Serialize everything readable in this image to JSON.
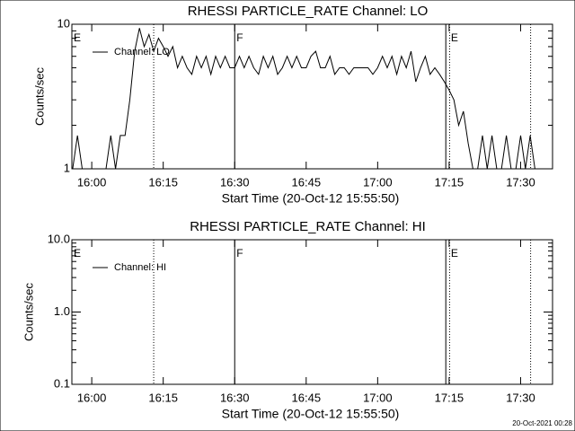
{
  "chart_data": [
    {
      "type": "line",
      "title": "RHESSI PARTICLE_RATE Channel: LO",
      "xlabel": "Start Time (20-Oct-12 15:55:50)",
      "ylabel": "Counts/sec",
      "log_y": true,
      "xlim": [
        -4.17,
        96.7
      ],
      "ylim": [
        1,
        10
      ],
      "xticks": [
        {
          "value": 0,
          "label": "16:00"
        },
        {
          "value": 15,
          "label": "16:15"
        },
        {
          "value": 30,
          "label": "16:30"
        },
        {
          "value": 45,
          "label": "16:45"
        },
        {
          "value": 60,
          "label": "17:00"
        },
        {
          "value": 75,
          "label": "17:15"
        },
        {
          "value": 90,
          "label": "17:30"
        }
      ],
      "yticks": [
        1,
        10
      ],
      "vlines": [
        {
          "x": 13,
          "style": "dotted"
        },
        {
          "x": 30,
          "style": "solid"
        },
        {
          "x": 74.3,
          "style": "solid"
        },
        {
          "x": 75.1,
          "style": "dotted"
        },
        {
          "x": 92.1,
          "style": "dotted"
        }
      ],
      "annotations": [
        {
          "x": -4.17,
          "text": "E"
        },
        {
          "x": 30,
          "text": "F"
        },
        {
          "x": 75,
          "text": "E"
        }
      ],
      "legend": "upper left",
      "series": [
        {
          "name": "Channel: LO",
          "color": "#000000",
          "x": [
            -4,
            -3,
            -2,
            -1,
            0,
            1,
            2,
            3,
            4,
            5,
            6,
            7,
            8,
            9,
            10,
            11,
            12,
            13,
            14,
            15,
            16,
            17,
            18,
            19,
            20,
            21,
            22,
            23,
            24,
            25,
            26,
            27,
            28,
            29,
            30,
            31,
            32,
            33,
            34,
            35,
            36,
            37,
            38,
            39,
            40,
            41,
            42,
            43,
            44,
            45,
            46,
            47,
            48,
            49,
            50,
            51,
            52,
            53,
            54,
            55,
            56,
            57,
            58,
            59,
            60,
            61,
            62,
            63,
            64,
            65,
            66,
            67,
            68,
            69,
            70,
            71,
            72,
            73,
            74,
            75,
            76,
            77,
            78,
            79,
            80,
            81,
            82,
            83,
            84,
            85,
            86,
            87,
            88,
            89,
            90,
            91,
            92,
            93,
            94,
            95
          ],
          "values": [
            1,
            1.7,
            1,
            1,
            1,
            1,
            1,
            1,
            1.7,
            1,
            1.7,
            1.7,
            3,
            6.5,
            9.4,
            7,
            8.5,
            6.5,
            8,
            7,
            6,
            7,
            5,
            6,
            5,
            4.5,
            6,
            5,
            6,
            4.5,
            6,
            5,
            6,
            5,
            5,
            6,
            5,
            6,
            5,
            4.5,
            6,
            5,
            6,
            4.5,
            5,
            6,
            5,
            6,
            5,
            5,
            6,
            6.5,
            5,
            5,
            6,
            4.5,
            5,
            5,
            4.5,
            5,
            5,
            5,
            5,
            4.5,
            5,
            6,
            5,
            6,
            4.5,
            6,
            5,
            6.5,
            4,
            5,
            6,
            4.5,
            5,
            4.5,
            4,
            3.5,
            3,
            2,
            2.5,
            1.5,
            1,
            1,
            1.7,
            1,
            1.7,
            1,
            1,
            1.7,
            1,
            1,
            1.7,
            1,
            1.7,
            1,
            1,
            1
          ]
        }
      ]
    },
    {
      "type": "line",
      "title": "RHESSI PARTICLE_RATE Channel: HI",
      "xlabel": "Start Time (20-Oct-12 15:55:50)",
      "ylabel": "Counts/sec",
      "log_y": true,
      "xlim": [
        -4.17,
        96.7
      ],
      "ylim": [
        0.1,
        10
      ],
      "xticks": [
        {
          "value": 0,
          "label": "16:00"
        },
        {
          "value": 15,
          "label": "16:15"
        },
        {
          "value": 30,
          "label": "16:30"
        },
        {
          "value": 45,
          "label": "16:45"
        },
        {
          "value": 60,
          "label": "17:00"
        },
        {
          "value": 75,
          "label": "17:15"
        },
        {
          "value": 90,
          "label": "17:30"
        }
      ],
      "yticks": [
        0.1,
        {
          "value": 1,
          "label": "1.0"
        },
        {
          "value": 10,
          "label": "10.0"
        }
      ],
      "vlines": [
        {
          "x": 13,
          "style": "dotted"
        },
        {
          "x": 30,
          "style": "solid"
        },
        {
          "x": 74.3,
          "style": "solid"
        },
        {
          "x": 75.1,
          "style": "dotted"
        },
        {
          "x": 92.1,
          "style": "dotted"
        }
      ],
      "annotations": [
        {
          "x": -4.17,
          "text": "E"
        },
        {
          "x": 30,
          "text": "F"
        },
        {
          "x": 75,
          "text": "E"
        }
      ],
      "legend": "upper left",
      "series": [
        {
          "name": "Channel: HI",
          "color": "#000000",
          "x": [],
          "values": []
        }
      ]
    }
  ],
  "footer": "20-Oct-2021 00:28"
}
